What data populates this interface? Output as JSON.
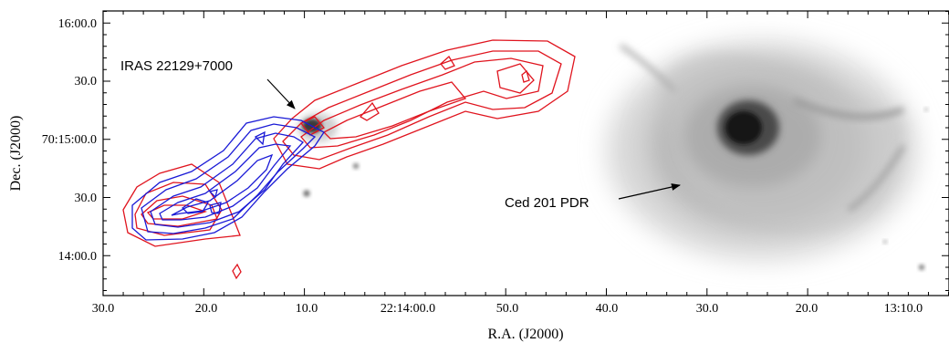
{
  "figure": {
    "xlabel": "R.A. (J2000)",
    "ylabel": "Dec. (J2000)",
    "x_ticks": [
      "30.0",
      "20.0",
      "10.0",
      "22:14:00.0",
      "50.0",
      "40.0",
      "30.0",
      "20.0",
      "13:10.0"
    ],
    "y_ticks": [
      "16:00.0",
      "30.0",
      "70:15:00.0",
      "30.0",
      "14:00.0"
    ],
    "annotations": {
      "iras": "IRAS 22129+7000",
      "ced": "Ced 201 PDR"
    },
    "contours": {
      "red_color": "#e0141e",
      "blue_color": "#1a1ad6"
    },
    "image_colormap": "inverted grayscale"
  }
}
